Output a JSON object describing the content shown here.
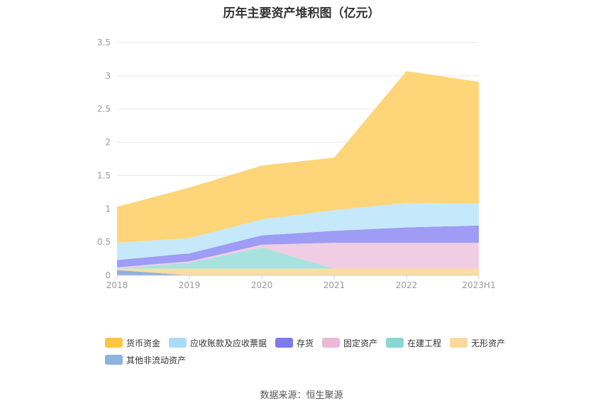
{
  "chart_data": {
    "type": "area",
    "stacked": true,
    "title": "历年主要资产堆积图（亿元）",
    "categories": [
      "2018",
      "2019",
      "2020",
      "2021",
      "2022",
      "2023H1"
    ],
    "ylim": [
      0,
      3.5
    ],
    "yticks": [
      0,
      0.5,
      1,
      1.5,
      2,
      2.5,
      3,
      3.5
    ],
    "ytick_labels": [
      "0",
      "0.5",
      "1",
      "1.5",
      "2",
      "2.5",
      "3",
      "3.5"
    ],
    "grid": true,
    "legend_position": "bottom",
    "series": [
      {
        "name": "其他非流动资产",
        "color": "#8fb1de",
        "values": [
          0.08,
          0.0,
          0.0,
          0.0,
          0.0,
          0.0
        ]
      },
      {
        "name": "无形资产",
        "color": "#fddca3",
        "values": [
          0.02,
          0.1,
          0.1,
          0.1,
          0.1,
          0.1
        ]
      },
      {
        "name": "在建工程",
        "color": "#a6e3df",
        "values": [
          0.0,
          0.09,
          0.32,
          0.0,
          0.0,
          0.0
        ]
      },
      {
        "name": "固定资产",
        "color": "#f0cde3",
        "values": [
          0.02,
          0.02,
          0.04,
          0.39,
          0.39,
          0.39
        ]
      },
      {
        "name": "存货",
        "color": "#9e9cf4",
        "values": [
          0.11,
          0.12,
          0.14,
          0.18,
          0.23,
          0.26
        ]
      },
      {
        "name": "应收账款及应收票据",
        "color": "#c5e8fb",
        "values": [
          0.26,
          0.23,
          0.24,
          0.31,
          0.37,
          0.33
        ]
      },
      {
        "name": "货币资金",
        "color": "#fed578",
        "values": [
          0.54,
          0.76,
          0.81,
          0.79,
          1.98,
          1.83
        ]
      }
    ]
  },
  "legend": [
    {
      "label": "货币资金",
      "color": "#fcc63f"
    },
    {
      "label": "应收账款及应收票据",
      "color": "#a9dcf9"
    },
    {
      "label": "存货",
      "color": "#7b7bef"
    },
    {
      "label": "固定资产",
      "color": "#eab9d6"
    },
    {
      "label": "在建工程",
      "color": "#8ad8d4"
    },
    {
      "label": "无形资产",
      "color": "#fcd89a"
    },
    {
      "label": "其他非流动资产",
      "color": "#8fb1de"
    }
  ],
  "source": "数据来源：恒生聚源"
}
